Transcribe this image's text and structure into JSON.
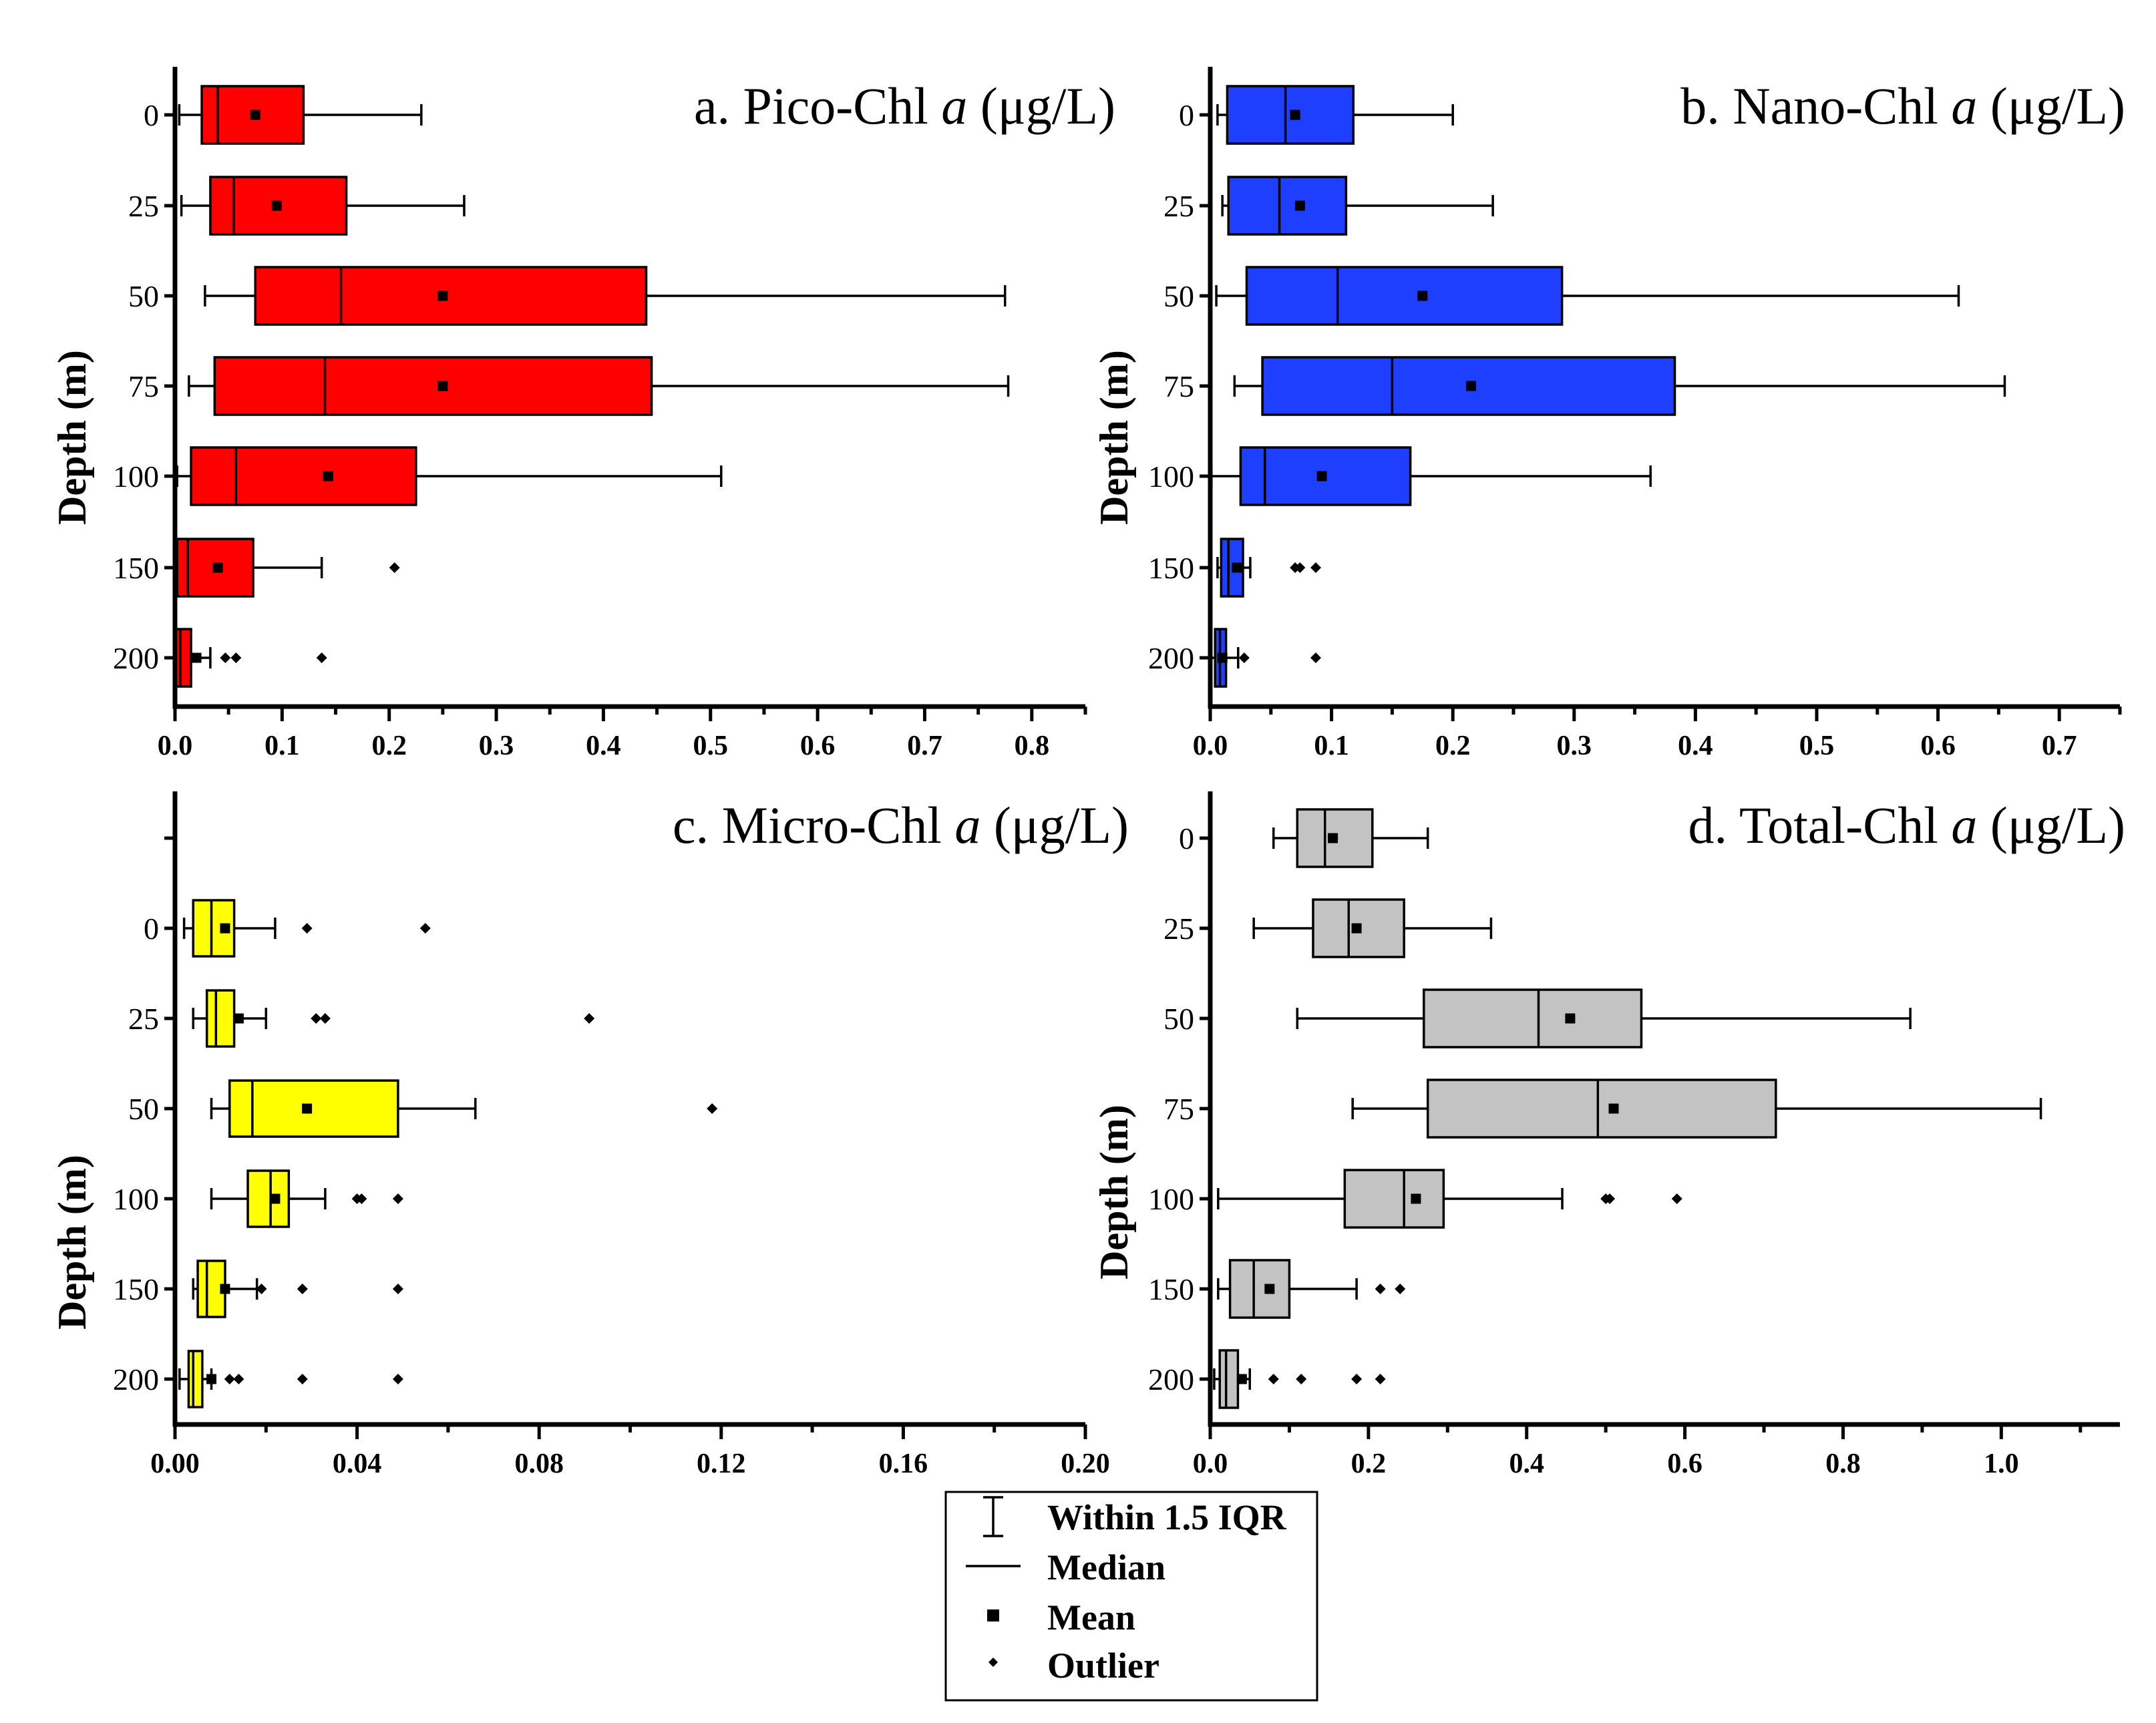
{
  "chart_data": [
    {
      "type": "box",
      "panel": "a",
      "title_prefix": "a. Pico-Chl ",
      "title_italic": "a",
      "title_suffix": " (μg/L)",
      "ylabel": "Depth (m)",
      "xlim": [
        0,
        0.85
      ],
      "xticks": [
        0.0,
        0.1,
        0.2,
        0.3,
        0.4,
        0.5,
        0.6,
        0.7,
        0.8
      ],
      "xtick_labels": [
        "0.0",
        "0.1",
        "0.2",
        "0.3",
        "0.4",
        "0.5",
        "0.6",
        "0.7",
        "0.8"
      ],
      "color": "#ff0000",
      "categories": [
        "0",
        "25",
        "50",
        "75",
        "100",
        "150",
        "200"
      ],
      "boxes": [
        {
          "depth": "0",
          "whisker_low": 0.004,
          "q1": 0.025,
          "median": 0.04,
          "q3": 0.12,
          "whisker_high": 0.23,
          "mean": 0.075,
          "outliers": []
        },
        {
          "depth": "25",
          "whisker_low": 0.006,
          "q1": 0.033,
          "median": 0.055,
          "q3": 0.16,
          "whisker_high": 0.27,
          "mean": 0.095,
          "outliers": []
        },
        {
          "depth": "50",
          "whisker_low": 0.028,
          "q1": 0.075,
          "median": 0.155,
          "q3": 0.44,
          "whisker_high": 0.775,
          "mean": 0.25,
          "outliers": []
        },
        {
          "depth": "75",
          "whisker_low": 0.013,
          "q1": 0.037,
          "median": 0.14,
          "q3": 0.445,
          "whisker_high": 0.778,
          "mean": 0.25,
          "outliers": []
        },
        {
          "depth": "100",
          "whisker_low": 0.002,
          "q1": 0.015,
          "median": 0.057,
          "q3": 0.225,
          "whisker_high": 0.51,
          "mean": 0.143,
          "outliers": []
        },
        {
          "depth": "150",
          "whisker_low": 0.0,
          "q1": 0.002,
          "median": 0.012,
          "q3": 0.073,
          "whisker_high": 0.137,
          "mean": 0.04,
          "outliers": [
            0.205
          ]
        },
        {
          "depth": "200",
          "whisker_low": 0.0,
          "q1": 0.001,
          "median": 0.005,
          "q3": 0.015,
          "whisker_high": 0.033,
          "mean": 0.02,
          "outliers": [
            0.047,
            0.057,
            0.137
          ]
        }
      ]
    },
    {
      "type": "box",
      "panel": "b",
      "title_prefix": "b. Nano-Chl ",
      "title_italic": "a",
      "title_suffix": " (μg/L)",
      "ylabel": "Depth (m)",
      "xlim": [
        0,
        0.75
      ],
      "xticks": [
        0.0,
        0.1,
        0.2,
        0.3,
        0.4,
        0.5,
        0.6,
        0.7
      ],
      "xtick_labels": [
        "0.0",
        "0.1",
        "0.2",
        "0.3",
        "0.4",
        "0.5",
        "0.6",
        "0.7"
      ],
      "color": "#1f3fff",
      "categories": [
        "0",
        "25",
        "50",
        "75",
        "100",
        "150",
        "200"
      ],
      "boxes": [
        {
          "depth": "0",
          "whisker_low": 0.006,
          "q1": 0.014,
          "median": 0.062,
          "q3": 0.118,
          "whisker_high": 0.2,
          "mean": 0.07,
          "outliers": []
        },
        {
          "depth": "25",
          "whisker_low": 0.01,
          "q1": 0.015,
          "median": 0.057,
          "q3": 0.112,
          "whisker_high": 0.233,
          "mean": 0.074,
          "outliers": []
        },
        {
          "depth": "50",
          "whisker_low": 0.005,
          "q1": 0.03,
          "median": 0.105,
          "q3": 0.29,
          "whisker_high": 0.617,
          "mean": 0.175,
          "outliers": []
        },
        {
          "depth": "75",
          "whisker_low": 0.02,
          "q1": 0.043,
          "median": 0.15,
          "q3": 0.383,
          "whisker_high": 0.655,
          "mean": 0.215,
          "outliers": []
        },
        {
          "depth": "100",
          "whisker_low": 0.001,
          "q1": 0.025,
          "median": 0.045,
          "q3": 0.165,
          "whisker_high": 0.363,
          "mean": 0.092,
          "outliers": []
        },
        {
          "depth": "150",
          "whisker_low": 0.006,
          "q1": 0.009,
          "median": 0.015,
          "q3": 0.027,
          "whisker_high": 0.033,
          "mean": 0.022,
          "outliers": [
            0.07,
            0.074,
            0.087
          ]
        },
        {
          "depth": "200",
          "whisker_low": 0.0,
          "q1": 0.004,
          "median": 0.008,
          "q3": 0.013,
          "whisker_high": 0.023,
          "mean": 0.01,
          "outliers": [
            0.028,
            0.087
          ]
        }
      ]
    },
    {
      "type": "box",
      "panel": "c",
      "title_prefix": "c. Micro-Chl ",
      "title_italic": "a",
      "title_suffix": " (μg/L)",
      "ylabel": "Depth (m)",
      "xlim": [
        0,
        0.2
      ],
      "xticks": [
        0.0,
        0.04,
        0.08,
        0.12,
        0.16,
        0.2
      ],
      "xtick_labels": [
        "0.00",
        "0.04",
        "0.08",
        "0.12",
        "0.16",
        "0.20"
      ],
      "color": "#ffff00",
      "categories": [
        "0",
        "25",
        "50",
        "100",
        "150",
        "200"
      ],
      "boxes": [
        {
          "depth": "0",
          "whisker_low": 0.002,
          "q1": 0.004,
          "median": 0.008,
          "q3": 0.013,
          "whisker_high": 0.022,
          "mean": 0.011,
          "outliers": [
            0.029,
            0.055
          ]
        },
        {
          "depth": "25",
          "whisker_low": 0.004,
          "q1": 0.007,
          "median": 0.009,
          "q3": 0.013,
          "whisker_high": 0.02,
          "mean": 0.014,
          "outliers": [
            0.031,
            0.033,
            0.091
          ]
        },
        {
          "depth": "50",
          "whisker_low": 0.008,
          "q1": 0.012,
          "median": 0.017,
          "q3": 0.049,
          "whisker_high": 0.066,
          "mean": 0.029,
          "outliers": [
            0.118
          ]
        },
        {
          "depth": "100",
          "whisker_low": 0.008,
          "q1": 0.016,
          "median": 0.021,
          "q3": 0.025,
          "whisker_high": 0.033,
          "mean": 0.022,
          "outliers": [
            0.04,
            0.041,
            0.049
          ]
        },
        {
          "depth": "150",
          "whisker_low": 0.004,
          "q1": 0.005,
          "median": 0.007,
          "q3": 0.011,
          "whisker_high": 0.018,
          "mean": 0.011,
          "outliers": [
            0.019,
            0.028,
            0.049
          ]
        },
        {
          "depth": "200",
          "whisker_low": 0.001,
          "q1": 0.003,
          "median": 0.004,
          "q3": 0.006,
          "whisker_high": 0.008,
          "mean": 0.008,
          "outliers": [
            0.012,
            0.014,
            0.028,
            0.049
          ]
        }
      ]
    },
    {
      "type": "box",
      "panel": "d",
      "title_prefix": "d. Total-Chl ",
      "title_italic": "a",
      "title_suffix": " (μg/L)",
      "ylabel": "Depth (m)",
      "xlim": [
        0,
        1.15
      ],
      "xticks": [
        0.0,
        0.2,
        0.4,
        0.6,
        0.8,
        1.0
      ],
      "xtick_labels": [
        "0.0",
        "0.2",
        "0.4",
        "0.6",
        "0.8",
        "1.0"
      ],
      "color": "#c3c3c3",
      "categories": [
        "0",
        "25",
        "50",
        "75",
        "100",
        "150",
        "200"
      ],
      "boxes": [
        {
          "depth": "0",
          "whisker_low": 0.08,
          "q1": 0.11,
          "median": 0.145,
          "q3": 0.205,
          "whisker_high": 0.275,
          "mean": 0.155,
          "outliers": []
        },
        {
          "depth": "25",
          "whisker_low": 0.055,
          "q1": 0.13,
          "median": 0.175,
          "q3": 0.245,
          "whisker_high": 0.355,
          "mean": 0.185,
          "outliers": []
        },
        {
          "depth": "50",
          "whisker_low": 0.11,
          "q1": 0.27,
          "median": 0.415,
          "q3": 0.545,
          "whisker_high": 0.885,
          "mean": 0.455,
          "outliers": []
        },
        {
          "depth": "75",
          "whisker_low": 0.18,
          "q1": 0.275,
          "median": 0.49,
          "q3": 0.715,
          "whisker_high": 1.05,
          "mean": 0.51,
          "outliers": []
        },
        {
          "depth": "100",
          "whisker_low": 0.01,
          "q1": 0.17,
          "median": 0.245,
          "q3": 0.295,
          "whisker_high": 0.445,
          "mean": 0.26,
          "outliers": [
            0.5,
            0.505,
            0.59
          ]
        },
        {
          "depth": "150",
          "whisker_low": 0.01,
          "q1": 0.025,
          "median": 0.055,
          "q3": 0.1,
          "whisker_high": 0.185,
          "mean": 0.075,
          "outliers": [
            0.215,
            0.24
          ]
        },
        {
          "depth": "200",
          "whisker_low": 0.005,
          "q1": 0.012,
          "median": 0.02,
          "q3": 0.035,
          "whisker_high": 0.05,
          "mean": 0.04,
          "outliers": [
            0.08,
            0.115,
            0.185,
            0.215
          ]
        }
      ]
    }
  ],
  "legend": {
    "items": [
      {
        "symbol": "whisker",
        "label": "Within 1.5 IQR"
      },
      {
        "symbol": "median",
        "label": "Median"
      },
      {
        "symbol": "mean",
        "label": "Mean"
      },
      {
        "symbol": "outlier",
        "label": "Outlier"
      }
    ]
  }
}
